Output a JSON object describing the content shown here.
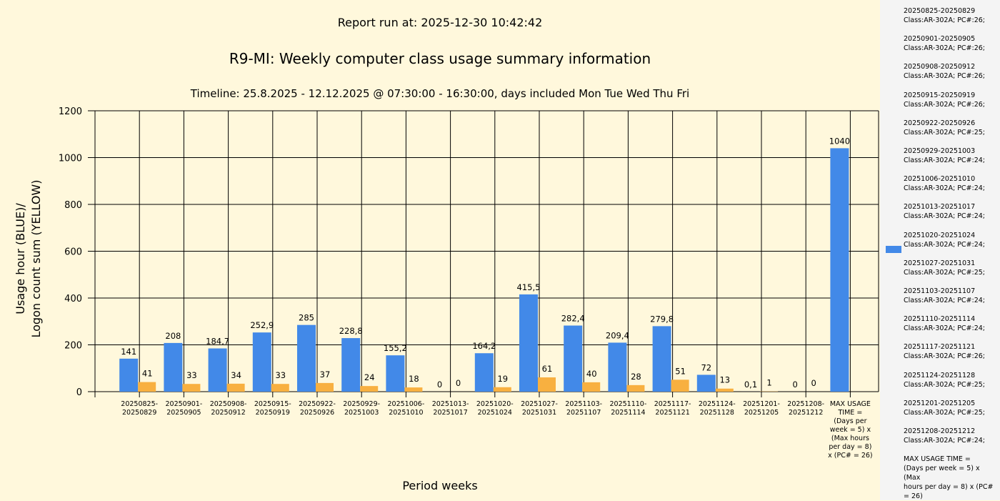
{
  "header": {
    "run": "Report run at: 2025-12-30 10:42:42",
    "title": "R9-MI: Weekly computer class usage summary information",
    "timeline": "Timeline:  25.8.2025  - 12.12.2025  @  07:30:00 -  16:30:00, days included Mon Tue Wed Thu Fri"
  },
  "colors": {
    "blue": "#4289e8",
    "yellow": "#f8b040",
    "background": "#fff8dc"
  },
  "chart_data": {
    "type": "bar",
    "xlabel": "Period weeks",
    "ylabel_lines": [
      "Usage hour (BLUE)/",
      "Logon count sum (YELLOW)"
    ],
    "ylim": [
      0,
      1200
    ],
    "yticks": [
      0,
      200,
      400,
      600,
      800,
      1000,
      1200
    ],
    "grid": true,
    "legend_placement": "right",
    "categories": [
      "20250825-\n20250829",
      "20250901-\n20250905",
      "20250908-\n20250912",
      "20250915-\n20250919",
      "20250922-\n20250926",
      "20250929-\n20251003",
      "20251006-\n20251010",
      "20251013-\n20251017",
      "20251020-\n20251024",
      "20251027-\n20251031",
      "20251103-\n20251107",
      "20251110-\n20251114",
      "20251117-\n20251121",
      "20251124-\n20251128",
      "20251201-\n20251205",
      "20251208-\n20251212",
      "MAX USAGE\nTIME =\n(Days per\nweek = 5) x\n(Max hours\nper day = 8)\nx (PC# = 26)"
    ],
    "series": [
      {
        "name": "Usage hour",
        "color": "#4289e8",
        "values": [
          141,
          208,
          184.7,
          252.9,
          285,
          228.8,
          155.2,
          0,
          164.2,
          415.5,
          282.4,
          209.4,
          279.8,
          72,
          0.1,
          0,
          1040
        ],
        "labels": [
          "141",
          "208",
          "184,7",
          "252,9",
          "285",
          "228,8",
          "155,2",
          "0",
          "164,2",
          "415,5",
          "282,4",
          "209,4",
          "279,8",
          "72",
          "0,1",
          "0",
          "1040"
        ]
      },
      {
        "name": "Logon count sum",
        "color": "#f8b040",
        "values": [
          41,
          33,
          34,
          33,
          37,
          24,
          18,
          0,
          19,
          61,
          40,
          28,
          51,
          13,
          1,
          0,
          null
        ],
        "labels": [
          "41",
          "33",
          "34",
          "33",
          "37",
          "24",
          "18",
          "0",
          "19",
          "61",
          "40",
          "28",
          "51",
          "13",
          "1",
          "0",
          null
        ]
      }
    ]
  },
  "legend": {
    "items": [
      "20250825-20250829\nClass:AR-302A; PC#:26;",
      "20250901-20250905\nClass:AR-302A; PC#:26;",
      "20250908-20250912\nClass:AR-302A; PC#:26;",
      "20250915-20250919\nClass:AR-302A; PC#:26;",
      "20250922-20250926\nClass:AR-302A; PC#:25;",
      "20250929-20251003\nClass:AR-302A; PC#:24;",
      "20251006-20251010\nClass:AR-302A; PC#:24;",
      "20251013-20251017\nClass:AR-302A; PC#:24;",
      "20251020-20251024\nClass:AR-302A; PC#:24;",
      "20251027-20251031\nClass:AR-302A; PC#:25;",
      "20251103-20251107\nClass:AR-302A; PC#:24;",
      "20251110-20251114\nClass:AR-302A; PC#:24;",
      "20251117-20251121\nClass:AR-302A; PC#:26;",
      "20251124-20251128\nClass:AR-302A; PC#:25;",
      "20251201-20251205\nClass:AR-302A; PC#:25;",
      "20251208-20251212\nClass:AR-302A; PC#:24;",
      "MAX USAGE TIME =\n (Days per week = 5) x (Max\nhours per day = 8) x (PC#\n= 26)"
    ]
  }
}
